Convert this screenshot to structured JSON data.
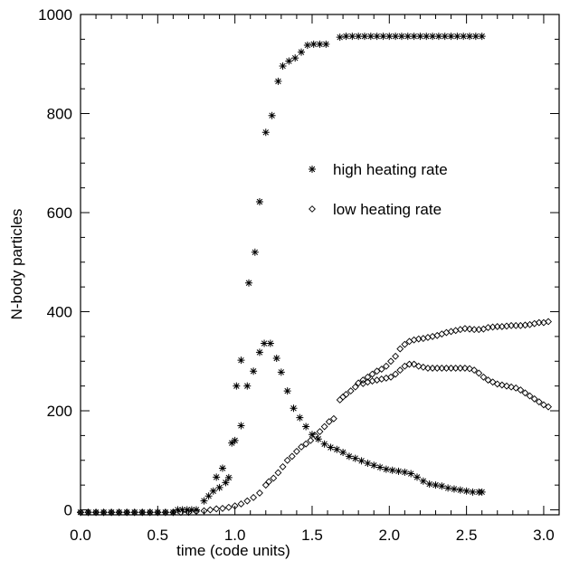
{
  "chart_data": {
    "type": "scatter",
    "xlabel": "time (code units)",
    "ylabel": "N-body particles",
    "xlim": [
      0,
      3.1
    ],
    "ylim": [
      -10,
      1000
    ],
    "xticks": [
      "0.0",
      "0.5",
      "1.0",
      "1.5",
      "2.0",
      "2.5",
      "3.0"
    ],
    "yticks": [
      "0",
      "200",
      "400",
      "600",
      "800",
      "1000"
    ],
    "grid": false,
    "legend_position": "right-middle",
    "series": [
      {
        "name": "high heating rate",
        "marker": "asterisk",
        "points": [
          [
            0.0,
            -5
          ],
          [
            0.05,
            -5
          ],
          [
            0.1,
            -5
          ],
          [
            0.15,
            -5
          ],
          [
            0.2,
            -5
          ],
          [
            0.25,
            -5
          ],
          [
            0.3,
            -5
          ],
          [
            0.35,
            -5
          ],
          [
            0.4,
            -5
          ],
          [
            0.45,
            -5
          ],
          [
            0.5,
            -5
          ],
          [
            0.55,
            -5
          ],
          [
            0.6,
            -5
          ],
          [
            0.63,
            0
          ],
          [
            0.66,
            0
          ],
          [
            0.69,
            0
          ],
          [
            0.72,
            0
          ],
          [
            0.75,
            0
          ],
          [
            0.8,
            18
          ],
          [
            0.83,
            28
          ],
          [
            0.86,
            38
          ],
          [
            0.88,
            66
          ],
          [
            0.9,
            45
          ],
          [
            0.92,
            84
          ],
          [
            0.94,
            55
          ],
          [
            0.96,
            65
          ],
          [
            0.98,
            135
          ],
          [
            1.0,
            140
          ],
          [
            1.01,
            250
          ],
          [
            1.04,
            302
          ],
          [
            1.04,
            170
          ],
          [
            1.08,
            250
          ],
          [
            1.09,
            458
          ],
          [
            1.12,
            280
          ],
          [
            1.13,
            520
          ],
          [
            1.16,
            318
          ],
          [
            1.16,
            622
          ],
          [
            1.19,
            336
          ],
          [
            1.2,
            762
          ],
          [
            1.23,
            336
          ],
          [
            1.24,
            796
          ],
          [
            1.27,
            306
          ],
          [
            1.28,
            865
          ],
          [
            1.3,
            278
          ],
          [
            1.31,
            896
          ],
          [
            1.34,
            240
          ],
          [
            1.35,
            906
          ],
          [
            1.38,
            205
          ],
          [
            1.39,
            912
          ],
          [
            1.42,
            186
          ],
          [
            1.43,
            924
          ],
          [
            1.46,
            168
          ],
          [
            1.47,
            938
          ],
          [
            1.5,
            152
          ],
          [
            1.51,
            940
          ],
          [
            1.54,
            143
          ],
          [
            1.55,
            940
          ],
          [
            1.58,
            133
          ],
          [
            1.59,
            940
          ],
          [
            1.62,
            126
          ],
          [
            1.66,
            122
          ],
          [
            1.68,
            954
          ],
          [
            1.7,
            116
          ],
          [
            1.72,
            956
          ],
          [
            1.74,
            108
          ],
          [
            1.76,
            956
          ],
          [
            1.78,
            104
          ],
          [
            1.8,
            956
          ],
          [
            1.82,
            99
          ],
          [
            1.84,
            956
          ],
          [
            1.86,
            94
          ],
          [
            1.88,
            956
          ],
          [
            1.9,
            90
          ],
          [
            1.92,
            956
          ],
          [
            1.94,
            86
          ],
          [
            1.96,
            956
          ],
          [
            1.98,
            82
          ],
          [
            2.0,
            956
          ],
          [
            2.02,
            80
          ],
          [
            2.04,
            956
          ],
          [
            2.06,
            78
          ],
          [
            2.08,
            956
          ],
          [
            2.1,
            76
          ],
          [
            2.12,
            956
          ],
          [
            2.14,
            73
          ],
          [
            2.16,
            956
          ],
          [
            2.18,
            66
          ],
          [
            2.2,
            956
          ],
          [
            2.22,
            58
          ],
          [
            2.24,
            956
          ],
          [
            2.26,
            52
          ],
          [
            2.28,
            956
          ],
          [
            2.3,
            50
          ],
          [
            2.32,
            956
          ],
          [
            2.34,
            48
          ],
          [
            2.36,
            956
          ],
          [
            2.38,
            44
          ],
          [
            2.4,
            956
          ],
          [
            2.42,
            42
          ],
          [
            2.44,
            956
          ],
          [
            2.46,
            40
          ],
          [
            2.48,
            956
          ],
          [
            2.5,
            38
          ],
          [
            2.52,
            956
          ],
          [
            2.54,
            36
          ],
          [
            2.56,
            956
          ],
          [
            2.58,
            36
          ],
          [
            2.6,
            956
          ],
          [
            2.6,
            36
          ]
        ]
      },
      {
        "name": "low heating rate",
        "marker": "diamond",
        "points": [
          [
            0.0,
            -5
          ],
          [
            0.05,
            -5
          ],
          [
            0.1,
            -5
          ],
          [
            0.15,
            -5
          ],
          [
            0.2,
            -5
          ],
          [
            0.25,
            -5
          ],
          [
            0.3,
            -5
          ],
          [
            0.35,
            -5
          ],
          [
            0.4,
            -5
          ],
          [
            0.45,
            -5
          ],
          [
            0.5,
            -5
          ],
          [
            0.55,
            -5
          ],
          [
            0.6,
            -5
          ],
          [
            0.65,
            -5
          ],
          [
            0.7,
            -5
          ],
          [
            0.75,
            -3
          ],
          [
            0.8,
            -2
          ],
          [
            0.84,
            0
          ],
          [
            0.88,
            2
          ],
          [
            0.92,
            3
          ],
          [
            0.96,
            5
          ],
          [
            1.0,
            8
          ],
          [
            1.04,
            12
          ],
          [
            1.08,
            18
          ],
          [
            1.12,
            25
          ],
          [
            1.16,
            34
          ],
          [
            1.2,
            50
          ],
          [
            1.22,
            57
          ],
          [
            1.25,
            64
          ],
          [
            1.28,
            75
          ],
          [
            1.31,
            87
          ],
          [
            1.34,
            100
          ],
          [
            1.37,
            108
          ],
          [
            1.4,
            118
          ],
          [
            1.43,
            127
          ],
          [
            1.46,
            133
          ],
          [
            1.49,
            140
          ],
          [
            1.52,
            150
          ],
          [
            1.55,
            158
          ],
          [
            1.58,
            168
          ],
          [
            1.61,
            178
          ],
          [
            1.64,
            184
          ],
          [
            1.68,
            222
          ],
          [
            1.7,
            228
          ],
          [
            1.72,
            233
          ],
          [
            1.75,
            240
          ],
          [
            1.78,
            248
          ],
          [
            1.8,
            256
          ],
          [
            1.83,
            262
          ],
          [
            1.86,
            268
          ],
          [
            1.89,
            274
          ],
          [
            1.92,
            280
          ],
          [
            1.95,
            284
          ],
          [
            1.98,
            290
          ],
          [
            2.01,
            300
          ],
          [
            2.04,
            310
          ],
          [
            2.07,
            325
          ],
          [
            2.1,
            334
          ],
          [
            2.13,
            340
          ],
          [
            2.16,
            343
          ],
          [
            2.19,
            345
          ],
          [
            2.22,
            346
          ],
          [
            2.25,
            348
          ],
          [
            2.28,
            350
          ],
          [
            2.31,
            352
          ],
          [
            2.34,
            355
          ],
          [
            2.37,
            358
          ],
          [
            2.4,
            360
          ],
          [
            2.43,
            362
          ],
          [
            2.46,
            364
          ],
          [
            2.49,
            366
          ],
          [
            2.52,
            365
          ],
          [
            2.55,
            364
          ],
          [
            2.58,
            364
          ],
          [
            2.61,
            365
          ],
          [
            2.64,
            368
          ],
          [
            2.67,
            369
          ],
          [
            2.7,
            370
          ],
          [
            2.73,
            370
          ],
          [
            2.76,
            371
          ],
          [
            2.79,
            372
          ],
          [
            2.82,
            372
          ],
          [
            2.85,
            372
          ],
          [
            2.88,
            373
          ],
          [
            2.91,
            374
          ],
          [
            2.94,
            376
          ],
          [
            2.97,
            378
          ],
          [
            3.0,
            378
          ],
          [
            3.03,
            380
          ],
          [
            1.83,
            255
          ],
          [
            1.86,
            258
          ],
          [
            1.89,
            260
          ],
          [
            1.92,
            262
          ],
          [
            1.95,
            264
          ],
          [
            1.98,
            266
          ],
          [
            2.01,
            268
          ],
          [
            2.04,
            274
          ],
          [
            2.07,
            282
          ],
          [
            2.1,
            290
          ],
          [
            2.13,
            294
          ],
          [
            2.16,
            294
          ],
          [
            2.19,
            290
          ],
          [
            2.22,
            288
          ],
          [
            2.25,
            286
          ],
          [
            2.28,
            286
          ],
          [
            2.31,
            286
          ],
          [
            2.34,
            286
          ],
          [
            2.37,
            286
          ],
          [
            2.4,
            286
          ],
          [
            2.43,
            286
          ],
          [
            2.46,
            286
          ],
          [
            2.49,
            286
          ],
          [
            2.52,
            285
          ],
          [
            2.55,
            282
          ],
          [
            2.58,
            276
          ],
          [
            2.61,
            268
          ],
          [
            2.64,
            262
          ],
          [
            2.67,
            258
          ],
          [
            2.7,
            254
          ],
          [
            2.73,
            252
          ],
          [
            2.76,
            250
          ],
          [
            2.79,
            248
          ],
          [
            2.82,
            246
          ],
          [
            2.85,
            242
          ],
          [
            2.88,
            236
          ],
          [
            2.91,
            230
          ],
          [
            2.94,
            224
          ],
          [
            2.97,
            218
          ],
          [
            3.0,
            212
          ],
          [
            3.03,
            208
          ]
        ]
      }
    ]
  }
}
